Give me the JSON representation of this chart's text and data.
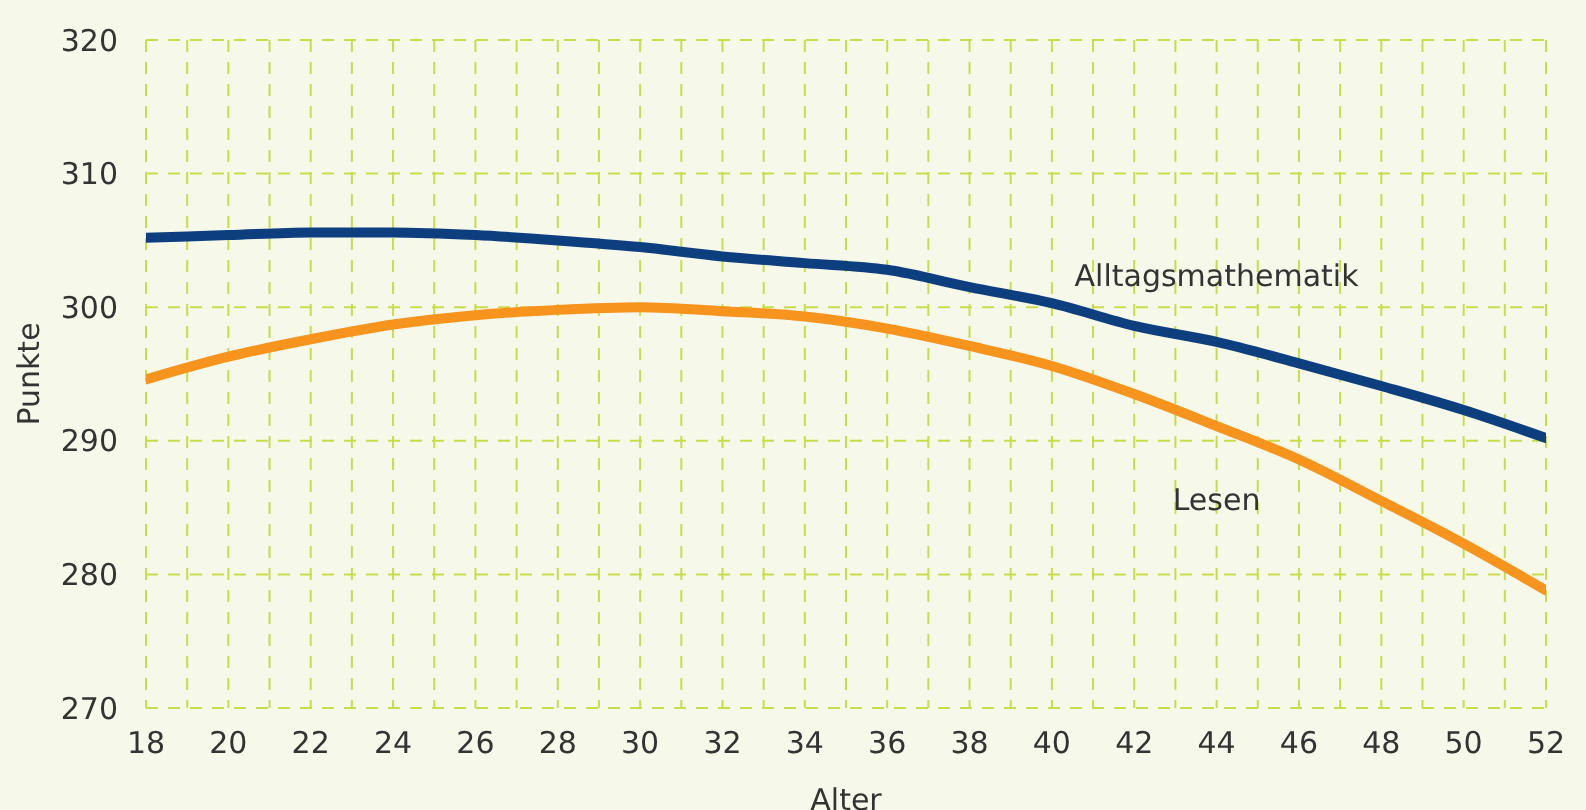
{
  "chart_data": {
    "type": "line",
    "xlabel": "Alter",
    "ylabel": "Punkte",
    "x": [
      18,
      20,
      22,
      24,
      26,
      28,
      30,
      32,
      34,
      36,
      38,
      40,
      42,
      44,
      46,
      48,
      50,
      52
    ],
    "series": [
      {
        "name": "Alltagsmathematik",
        "color": "#0d3f7f",
        "values": [
          305.2,
          305.4,
          305.6,
          305.6,
          305.4,
          305.0,
          304.5,
          303.8,
          303.3,
          302.8,
          301.5,
          300.3,
          298.6,
          297.4,
          295.8,
          294.1,
          292.3,
          290.2
        ]
      },
      {
        "name": "Lesen",
        "color": "#f7941d",
        "values": [
          294.6,
          296.3,
          297.6,
          298.7,
          299.4,
          299.8,
          300.0,
          299.7,
          299.3,
          298.4,
          297.1,
          295.6,
          293.5,
          291.1,
          288.6,
          285.5,
          282.3,
          278.8
        ]
      }
    ],
    "xlim": [
      18,
      52
    ],
    "xticks": [
      18,
      {
        "value": 19,
        "label": null
      },
      20,
      {
        "value": 21,
        "label": null
      },
      22,
      {
        "value": 23,
        "label": null
      },
      24,
      {
        "value": 25,
        "label": null
      },
      26,
      {
        "value": 27,
        "label": null
      },
      28,
      {
        "value": 29,
        "label": null
      },
      30,
      {
        "value": 31,
        "label": null
      },
      32,
      {
        "value": 33,
        "label": null
      },
      34,
      {
        "value": 35,
        "label": null
      },
      36,
      {
        "value": 37,
        "label": null
      },
      38,
      {
        "value": 39,
        "label": null
      },
      40,
      {
        "value": 41,
        "label": null
      },
      42,
      {
        "value": 43,
        "label": null
      },
      44,
      {
        "value": 45,
        "label": null
      },
      46,
      {
        "value": 47,
        "label": null
      },
      48,
      {
        "value": 49,
        "label": null
      },
      50,
      {
        "value": 51,
        "label": null
      },
      52
    ],
    "ylim": [
      270,
      320
    ],
    "yticks": [
      270,
      280,
      290,
      300,
      310,
      320
    ],
    "grid": true,
    "legend": false,
    "marker": "none",
    "line_style": "solid"
  }
}
